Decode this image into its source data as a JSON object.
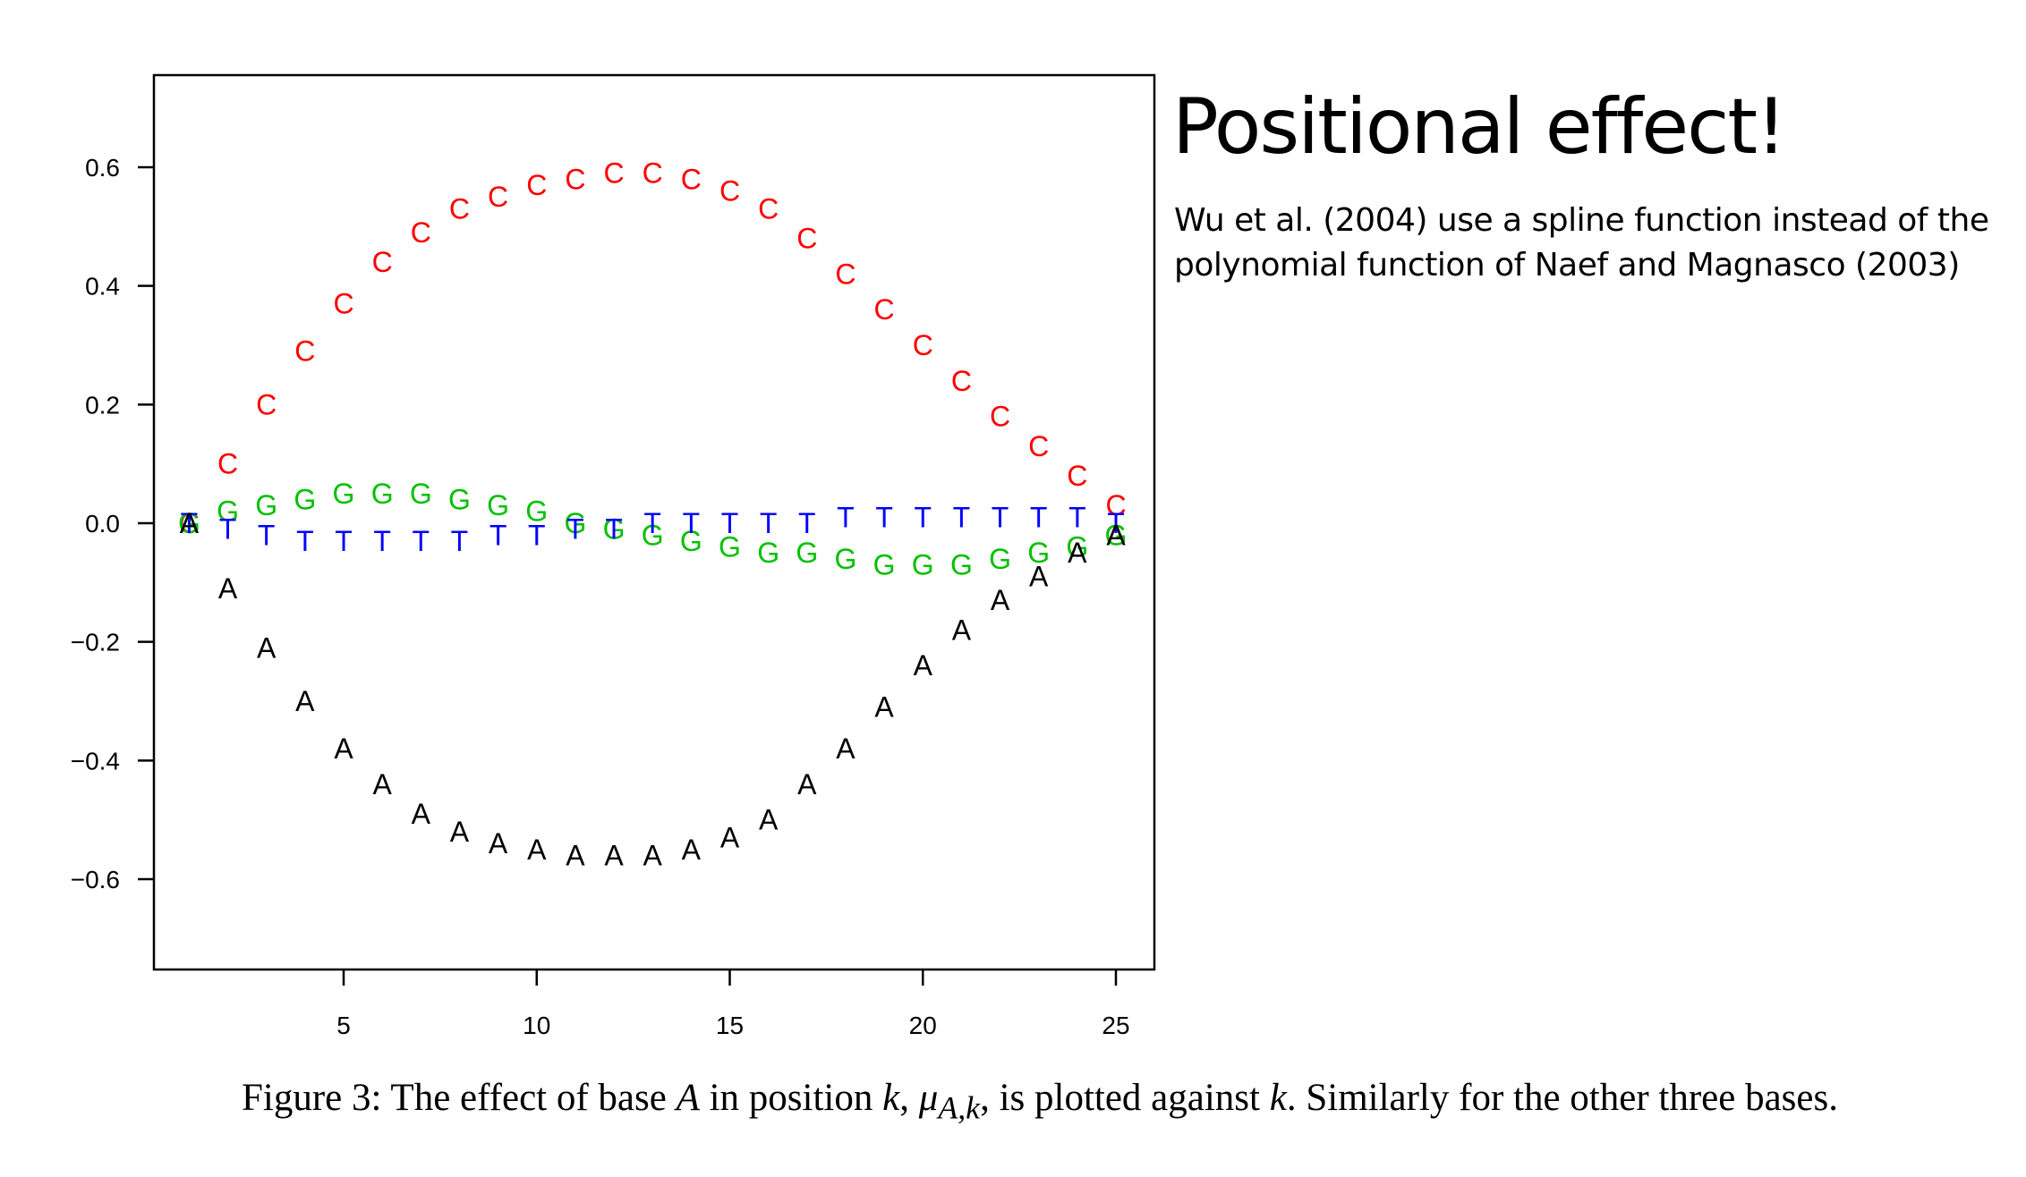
{
  "slide": {
    "title": "Positional effect!",
    "text": "Wu et al. (2004) use a spline function instead of the polynomial function of Naef and Magnasco (2003)"
  },
  "caption": {
    "p1": "Figure 3: The effect of base ",
    "p2": "A",
    "p3": " in position ",
    "p4": "k",
    "p5": ", ",
    "p6": "μ",
    "p7": "A,k",
    "p8": ", is plotted against ",
    "p9": "k",
    "p10": ". Similarly for the other three bases."
  },
  "chart_data": {
    "type": "scatter",
    "xlim": [
      0,
      26
    ],
    "ylim": [
      -0.75,
      0.75
    ],
    "xticks": [
      5,
      10,
      15,
      20,
      25
    ],
    "yticks": [
      0.6,
      0.4,
      0.2,
      0.0,
      -0.2,
      -0.4,
      -0.6
    ],
    "ytick_labels": [
      "0.6",
      "0.4",
      "0.2",
      "0.0",
      "−0.2",
      "−0.4",
      "−0.6"
    ],
    "xtick_labels": [
      "5",
      "10",
      "15",
      "20",
      "25"
    ],
    "grid": false,
    "series": [
      {
        "name": "A",
        "color": "#000000",
        "x": [
          1,
          2,
          3,
          4,
          5,
          6,
          7,
          8,
          9,
          10,
          11,
          12,
          13,
          14,
          15,
          16,
          17,
          18,
          19,
          20,
          21,
          22,
          23,
          24,
          25
        ],
        "y": [
          0.0,
          -0.11,
          -0.21,
          -0.3,
          -0.38,
          -0.44,
          -0.49,
          -0.52,
          -0.54,
          -0.55,
          -0.56,
          -0.56,
          -0.56,
          -0.55,
          -0.53,
          -0.5,
          -0.44,
          -0.38,
          -0.31,
          -0.24,
          -0.18,
          -0.13,
          -0.09,
          -0.05,
          -0.02
        ]
      },
      {
        "name": "C",
        "color": "#ff0000",
        "x": [
          1,
          2,
          3,
          4,
          5,
          6,
          7,
          8,
          9,
          10,
          11,
          12,
          13,
          14,
          15,
          16,
          17,
          18,
          19,
          20,
          21,
          22,
          23,
          24,
          25
        ],
        "y": [
          0.0,
          0.1,
          0.2,
          0.29,
          0.37,
          0.44,
          0.49,
          0.53,
          0.55,
          0.57,
          0.58,
          0.59,
          0.59,
          0.58,
          0.56,
          0.53,
          0.48,
          0.42,
          0.36,
          0.3,
          0.24,
          0.18,
          0.13,
          0.08,
          0.03
        ]
      },
      {
        "name": "G",
        "color": "#00c000",
        "x": [
          1,
          2,
          3,
          4,
          5,
          6,
          7,
          8,
          9,
          10,
          11,
          12,
          13,
          14,
          15,
          16,
          17,
          18,
          19,
          20,
          21,
          22,
          23,
          24,
          25
        ],
        "y": [
          0.0,
          0.02,
          0.03,
          0.04,
          0.05,
          0.05,
          0.05,
          0.04,
          0.03,
          0.02,
          0.0,
          -0.01,
          -0.02,
          -0.03,
          -0.04,
          -0.05,
          -0.05,
          -0.06,
          -0.07,
          -0.07,
          -0.07,
          -0.06,
          -0.05,
          -0.04,
          -0.02
        ]
      },
      {
        "name": "T",
        "color": "#0000ff",
        "x": [
          1,
          2,
          3,
          4,
          5,
          6,
          7,
          8,
          9,
          10,
          11,
          12,
          13,
          14,
          15,
          16,
          17,
          18,
          19,
          20,
          21,
          22,
          23,
          24,
          25
        ],
        "y": [
          0.0,
          -0.01,
          -0.02,
          -0.03,
          -0.03,
          -0.03,
          -0.03,
          -0.03,
          -0.02,
          -0.02,
          -0.01,
          -0.01,
          0.0,
          0.0,
          0.0,
          0.0,
          0.0,
          0.01,
          0.01,
          0.01,
          0.01,
          0.01,
          0.01,
          0.01,
          0.0
        ]
      }
    ]
  }
}
